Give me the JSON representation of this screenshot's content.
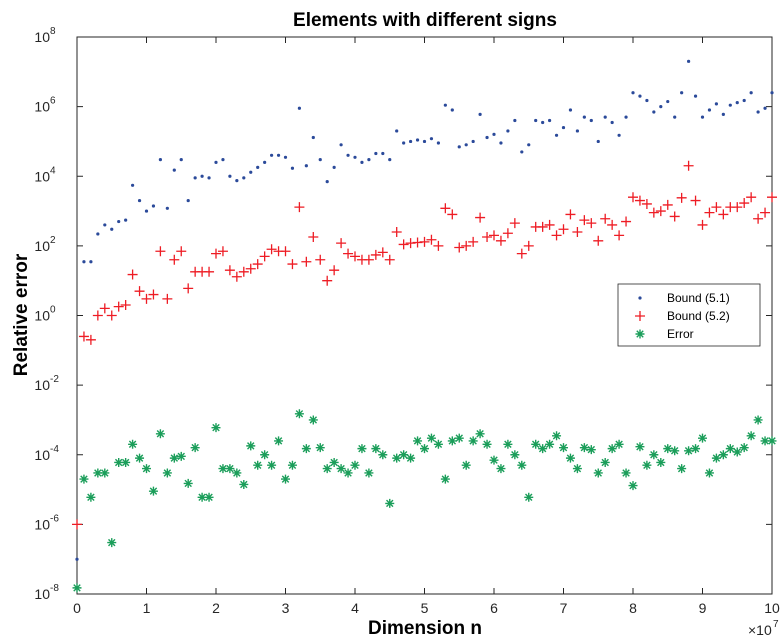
{
  "chart_data": {
    "type": "scatter",
    "title": "Elements with different signs",
    "xlabel": "Dimension n",
    "ylabel": "Relative error",
    "x_multiplier": "×10",
    "x_multiplier_exp": "7",
    "xlim": [
      0,
      10
    ],
    "ylim": [
      1e-08,
      100000000.0
    ],
    "yscale": "log",
    "grid": false,
    "legend_position": "right-middle",
    "x_ticks": [
      {
        "value": 0,
        "label": "0"
      },
      {
        "value": 1,
        "label": "1"
      },
      {
        "value": 2,
        "label": "2"
      },
      {
        "value": 3,
        "label": "3"
      },
      {
        "value": 4,
        "label": "4"
      },
      {
        "value": 5,
        "label": "5"
      },
      {
        "value": 6,
        "label": "6"
      },
      {
        "value": 7,
        "label": "7"
      },
      {
        "value": 8,
        "label": "8"
      },
      {
        "value": 9,
        "label": "9"
      },
      {
        "value": 10,
        "label": "10"
      }
    ],
    "y_ticks": [
      {
        "value": 1e-08,
        "base": "10",
        "exp": "-8"
      },
      {
        "value": 1e-06,
        "base": "10",
        "exp": "-6"
      },
      {
        "value": 0.0001,
        "base": "10",
        "exp": "-4"
      },
      {
        "value": 0.01,
        "base": "10",
        "exp": "-2"
      },
      {
        "value": 1.0,
        "base": "10",
        "exp": "0"
      },
      {
        "value": 100.0,
        "base": "10",
        "exp": "2"
      },
      {
        "value": 10000.0,
        "base": "10",
        "exp": "4"
      },
      {
        "value": 1000000.0,
        "base": "10",
        "exp": "6"
      },
      {
        "value": 100000000.0,
        "base": "10",
        "exp": "8"
      }
    ],
    "series": [
      {
        "name": "Bound (5.1)",
        "marker": "dot",
        "color": "#2b4a9a",
        "x": [
          0.0,
          0.1,
          0.2,
          0.3,
          0.4,
          0.5,
          0.6,
          0.7,
          0.8,
          0.9,
          1.0,
          1.1,
          1.2,
          1.3,
          1.4,
          1.5,
          1.6,
          1.7,
          1.8,
          1.9,
          2.0,
          2.1,
          2.2,
          2.3,
          2.4,
          2.5,
          2.6,
          2.7,
          2.8,
          2.9,
          3.0,
          3.1,
          3.2,
          3.3,
          3.4,
          3.5,
          3.6,
          3.7,
          3.8,
          3.9,
          4.0,
          4.1,
          4.2,
          4.3,
          4.4,
          4.5,
          4.6,
          4.7,
          4.8,
          4.9,
          5.0,
          5.1,
          5.2,
          5.3,
          5.4,
          5.5,
          5.6,
          5.7,
          5.8,
          5.9,
          6.0,
          6.1,
          6.2,
          6.3,
          6.4,
          6.5,
          6.6,
          6.7,
          6.8,
          6.9,
          7.0,
          7.1,
          7.2,
          7.3,
          7.4,
          7.5,
          7.6,
          7.7,
          7.8,
          7.9,
          8.0,
          8.1,
          8.2,
          8.3,
          8.4,
          8.5,
          8.6,
          8.7,
          8.8,
          8.9,
          9.0,
          9.1,
          9.2,
          9.3,
          9.4,
          9.5,
          9.6,
          9.7,
          9.8,
          9.9,
          10.0
        ],
        "y": [
          1e-07,
          35,
          35,
          220,
          400,
          300,
          500,
          550,
          5500,
          2000,
          1000,
          1400,
          30000,
          1200,
          15000,
          30000,
          2000,
          9000,
          10000,
          9000,
          25000,
          30000,
          10000,
          7500,
          9000,
          13000,
          18000,
          25000,
          40000,
          40000,
          35000,
          17000,
          900000,
          20000,
          130000,
          30000,
          7000,
          18000,
          80000,
          40000,
          35000,
          25000,
          30000,
          45000,
          45000,
          30000,
          200000,
          90000,
          100000,
          110000,
          100000,
          120000,
          90000,
          1100000,
          800000,
          70000,
          80000,
          100000,
          600000,
          130000,
          160000,
          90000,
          200000,
          400000,
          50000,
          80000,
          400000,
          350000,
          400000,
          150000,
          250000,
          800000,
          200000,
          500000,
          400000,
          100000,
          500000,
          350000,
          150000,
          500000,
          2500000,
          2000000,
          1500000,
          700000,
          1000000,
          1400000,
          500000,
          2500000,
          20000000,
          2000000,
          500000,
          800000,
          1200000,
          600000,
          1100000,
          1300000,
          1500000,
          2500000,
          700000,
          900000,
          2500000
        ]
      },
      {
        "name": "Bound (5.2)",
        "marker": "plus",
        "color": "#ee1c24",
        "x": [
          0.0,
          0.1,
          0.2,
          0.3,
          0.4,
          0.5,
          0.6,
          0.7,
          0.8,
          0.9,
          1.0,
          1.1,
          1.2,
          1.3,
          1.4,
          1.5,
          1.6,
          1.7,
          1.8,
          1.9,
          2.0,
          2.1,
          2.2,
          2.3,
          2.4,
          2.5,
          2.6,
          2.7,
          2.8,
          2.9,
          3.0,
          3.1,
          3.2,
          3.3,
          3.4,
          3.5,
          3.6,
          3.7,
          3.8,
          3.9,
          4.0,
          4.1,
          4.2,
          4.3,
          4.4,
          4.5,
          4.6,
          4.7,
          4.8,
          4.9,
          5.0,
          5.1,
          5.2,
          5.3,
          5.4,
          5.5,
          5.6,
          5.7,
          5.8,
          5.9,
          6.0,
          6.1,
          6.2,
          6.3,
          6.4,
          6.5,
          6.6,
          6.7,
          6.8,
          6.9,
          7.0,
          7.1,
          7.2,
          7.3,
          7.4,
          7.5,
          7.6,
          7.7,
          7.8,
          7.9,
          8.0,
          8.1,
          8.2,
          8.3,
          8.4,
          8.5,
          8.6,
          8.7,
          8.8,
          8.9,
          9.0,
          9.1,
          9.2,
          9.3,
          9.4,
          9.5,
          9.6,
          9.7,
          9.8,
          9.9,
          10.0
        ],
        "y": [
          1e-06,
          0.25,
          0.2,
          1.0,
          1.6,
          1.0,
          1.8,
          2.0,
          15,
          5,
          3,
          4,
          70,
          3,
          40,
          70,
          6,
          18,
          18,
          18,
          60,
          70,
          20,
          13,
          18,
          22,
          30,
          50,
          80,
          70,
          70,
          30,
          1300,
          35,
          180,
          40,
          10,
          20,
          120,
          60,
          50,
          40,
          40,
          55,
          65,
          40,
          250,
          110,
          120,
          125,
          130,
          150,
          100,
          1200,
          800,
          90,
          100,
          130,
          650,
          180,
          200,
          140,
          230,
          450,
          60,
          100,
          350,
          350,
          400,
          200,
          300,
          800,
          250,
          550,
          450,
          140,
          600,
          400,
          200,
          500,
          2500,
          2000,
          1600,
          900,
          1000,
          1500,
          700,
          2400,
          20000,
          2000,
          400,
          900,
          1300,
          800,
          1300,
          1300,
          1700,
          2500,
          600,
          900,
          2500
        ]
      },
      {
        "name": "Error",
        "marker": "asterisk",
        "color": "#1b9e5a",
        "x": [
          0.0,
          0.1,
          0.2,
          0.3,
          0.4,
          0.5,
          0.6,
          0.7,
          0.8,
          0.9,
          1.0,
          1.1,
          1.2,
          1.3,
          1.4,
          1.5,
          1.6,
          1.7,
          1.8,
          1.9,
          2.0,
          2.1,
          2.2,
          2.3,
          2.4,
          2.5,
          2.6,
          2.7,
          2.8,
          2.9,
          3.0,
          3.1,
          3.2,
          3.3,
          3.4,
          3.5,
          3.6,
          3.7,
          3.8,
          3.9,
          4.0,
          4.1,
          4.2,
          4.3,
          4.4,
          4.5,
          4.6,
          4.7,
          4.8,
          4.9,
          5.0,
          5.1,
          5.2,
          5.3,
          5.4,
          5.5,
          5.6,
          5.7,
          5.8,
          5.9,
          6.0,
          6.1,
          6.2,
          6.3,
          6.4,
          6.5,
          6.6,
          6.7,
          6.8,
          6.9,
          7.0,
          7.1,
          7.2,
          7.3,
          7.4,
          7.5,
          7.6,
          7.7,
          7.8,
          7.9,
          8.0,
          8.1,
          8.2,
          8.3,
          8.4,
          8.5,
          8.6,
          8.7,
          8.8,
          8.9,
          9.0,
          9.1,
          9.2,
          9.3,
          9.4,
          9.5,
          9.6,
          9.7,
          9.8,
          9.9,
          10.0
        ],
        "y": [
          1.5e-08,
          2e-05,
          6e-06,
          3e-05,
          3e-05,
          3e-07,
          6e-05,
          6e-05,
          0.0002,
          8e-05,
          4e-05,
          9e-06,
          0.0004,
          3e-05,
          8e-05,
          9e-05,
          1.5e-05,
          0.00016,
          6e-06,
          6e-06,
          0.0006,
          4e-05,
          4e-05,
          3e-05,
          1.4e-05,
          0.00018,
          5e-05,
          0.0001,
          5e-05,
          0.00025,
          2e-05,
          5e-05,
          0.0015,
          0.00015,
          0.001,
          0.00016,
          4e-05,
          6e-05,
          4e-05,
          3e-05,
          5e-05,
          0.00015,
          3e-05,
          0.00015,
          0.0001,
          4e-06,
          8e-05,
          0.0001,
          8e-05,
          0.00025,
          0.00015,
          0.0003,
          0.0002,
          2e-05,
          0.00025,
          0.0003,
          5e-05,
          0.00025,
          0.0004,
          0.0002,
          7e-05,
          4e-05,
          0.0002,
          0.0001,
          5e-05,
          6e-06,
          0.0002,
          0.00015,
          0.0002,
          0.00035,
          0.00016,
          8e-05,
          4e-05,
          0.00016,
          0.00014,
          3e-05,
          6e-05,
          0.00015,
          0.0002,
          3e-05,
          1.3e-05,
          0.00017,
          5e-05,
          0.0001,
          6e-05,
          0.00015,
          0.00013,
          4e-05,
          0.00013,
          0.00015,
          0.0003,
          3e-05,
          8e-05,
          0.0001,
          0.00015,
          0.00012,
          0.00016,
          0.00035,
          0.001,
          0.00025,
          0.00025
        ]
      }
    ]
  }
}
